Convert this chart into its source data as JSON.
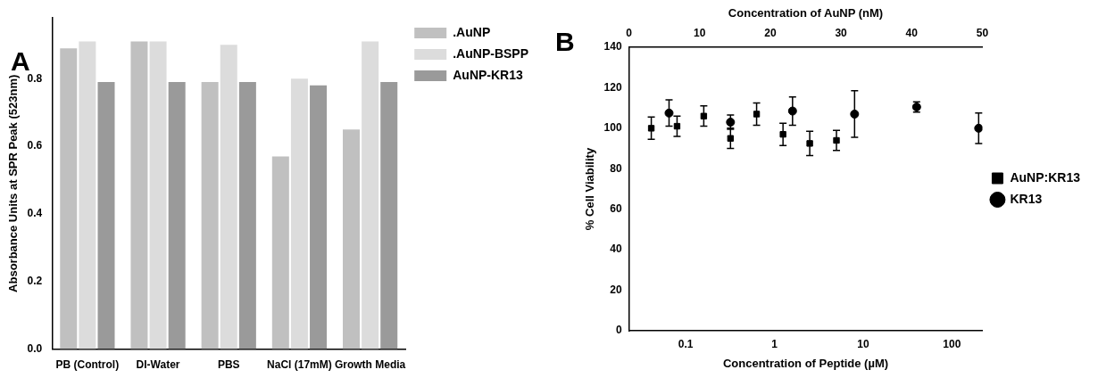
{
  "chart_data": [
    {
      "type": "bar",
      "annotations": [
        "A"
      ],
      "ylabel": "Absorbance Units at SPR Peak (523nm)",
      "categories": [
        "PB (Control)",
        "DI-Water",
        "PBS",
        "NaCl (17mM)",
        "Growth Media"
      ],
      "series": [
        {
          "name": ".AuNP",
          "color": "#c0c0c0",
          "values": [
            0.89,
            0.91,
            0.79,
            0.57,
            0.65
          ]
        },
        {
          "name": ".AuNP-BSPP",
          "color": "#dcdcdc",
          "values": [
            0.91,
            0.91,
            0.9,
            0.8,
            0.91
          ]
        },
        {
          "name": "AuNP-KR13",
          "color": "#9a9a9a",
          "values": [
            0.79,
            0.79,
            0.79,
            0.78,
            0.79
          ]
        }
      ],
      "ylim": [
        0,
        0.98
      ],
      "yticks": [
        {
          "value": 0,
          "label": "0.0"
        },
        {
          "value": 0.2,
          "label": "0.2"
        },
        {
          "value": 0.4,
          "label": "0.4"
        },
        {
          "value": 0.6,
          "label": "0.6"
        },
        {
          "value": 0.8,
          "label": "0.8"
        }
      ],
      "grid": false,
      "legend": "top right"
    },
    {
      "type": "scatter",
      "annotations": [
        "B"
      ],
      "xlabel": "Concentration of Peptide (µM)",
      "ylabel": "% Cell Viability",
      "x2label": "Concentration of AuNP (nM)",
      "log": "x",
      "series": [
        {
          "name": "AuNP:KR13",
          "color": "#000000",
          "marker": "square",
          "x": [
            0.041,
            0.08,
            0.16,
            0.32,
            0.63,
            1.25,
            2.5,
            5
          ],
          "values": [
            100,
            101,
            106,
            95,
            107,
            97,
            92.5,
            94
          ],
          "errors": [
            5.5,
            5,
            5,
            5,
            5.5,
            5.5,
            6,
            5
          ]
        },
        {
          "name": "KR13",
          "color": "#000000",
          "marker": "circle",
          "x": [
            0.065,
            0.32,
            1.6,
            8,
            40,
            200
          ],
          "values": [
            107.5,
            103,
            108.5,
            107,
            110.5,
            100
          ],
          "errors": [
            6.5,
            3.5,
            7,
            11.5,
            2.5,
            7.5
          ]
        }
      ],
      "xlim": [
        0.023,
        220
      ],
      "xticks": [
        0.1,
        1,
        10,
        100
      ],
      "x2lim": [
        0,
        50
      ],
      "x2ticks": [
        0,
        10,
        20,
        30,
        40,
        50
      ],
      "ylim": [
        0,
        140
      ],
      "yticks": [
        0,
        20,
        40,
        60,
        80,
        100,
        120,
        140
      ],
      "grid": false,
      "legend": "right"
    }
  ]
}
